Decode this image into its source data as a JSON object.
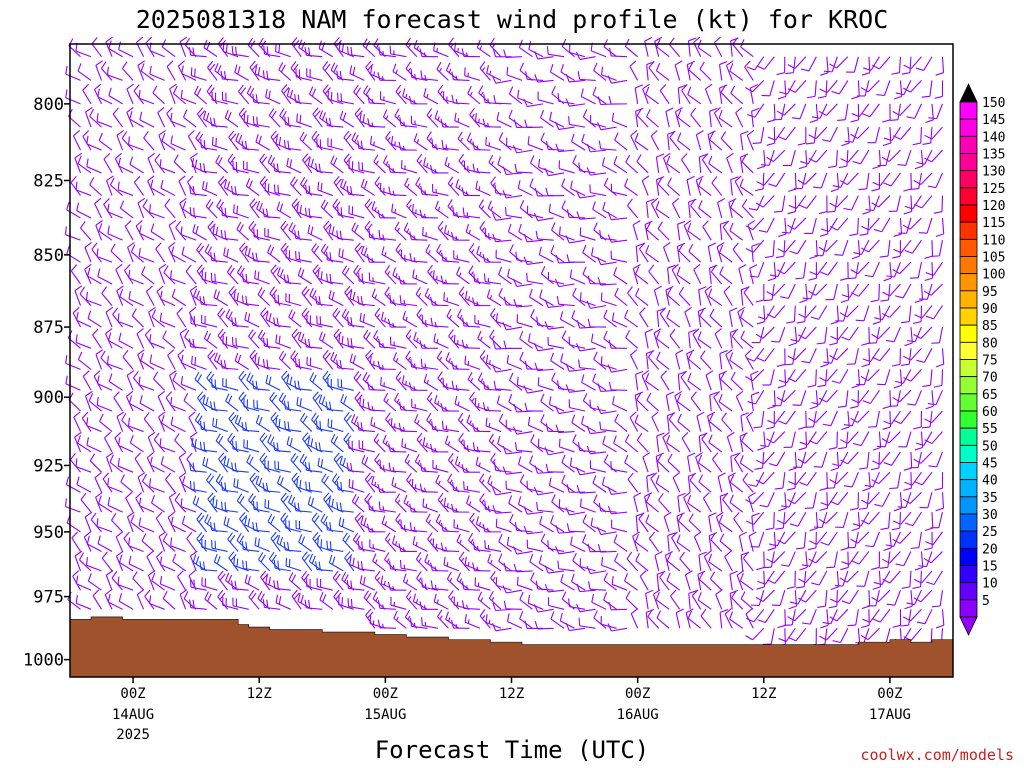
{
  "chart_data": {
    "type": "wind-barb-profile",
    "title": "2025081318 NAM forecast wind profile (kt) for KROC",
    "xlabel": "Forecast Time (UTC)",
    "credit": "coolwx.com/models",
    "y_ticks": [
      "800",
      "825",
      "850",
      "875",
      "900",
      "925",
      "950",
      "975",
      "1000"
    ],
    "y_tick_values": [
      800,
      825,
      850,
      875,
      900,
      925,
      950,
      975,
      1000
    ],
    "ylim_hpa": [
      781,
      1007
    ],
    "x_ticks": [
      {
        "hour": 6,
        "line1": "00Z",
        "line2": "14AUG",
        "line3": "2025"
      },
      {
        "hour": 18,
        "line1": "12Z",
        "line2": "",
        "line3": ""
      },
      {
        "hour": 30,
        "line1": "00Z",
        "line2": "15AUG",
        "line3": ""
      },
      {
        "hour": 42,
        "line1": "12Z",
        "line2": "",
        "line3": ""
      },
      {
        "hour": 54,
        "line1": "00Z",
        "line2": "16AUG",
        "line3": ""
      },
      {
        "hour": 66,
        "line1": "12Z",
        "line2": "",
        "line3": ""
      },
      {
        "hour": 78,
        "line1": "00Z",
        "line2": "17AUG",
        "line3": ""
      }
    ],
    "xlim_hours": [
      0,
      84
    ],
    "colorbar": {
      "labels": [
        "150",
        "145",
        "140",
        "135",
        "130",
        "125",
        "120",
        "115",
        "110",
        "105",
        "100",
        "95",
        "90",
        "85",
        "80",
        "75",
        "70",
        "65",
        "60",
        "55",
        "50",
        "45",
        "40",
        "35",
        "30",
        "25",
        "20",
        "15",
        "10",
        "5"
      ],
      "colors": [
        "#ff00ff",
        "#ff00e6",
        "#ff00b4",
        "#ff0096",
        "#ff0064",
        "#ff0032",
        "#ff0000",
        "#ff3200",
        "#ff5a00",
        "#ff7800",
        "#ff9600",
        "#ffb400",
        "#ffd200",
        "#ffff00",
        "#ffff32",
        "#c8ff32",
        "#96ff32",
        "#64ff32",
        "#32ff32",
        "#00ff96",
        "#00ffc8",
        "#00d2ff",
        "#00b4ff",
        "#0096ff",
        "#0064ff",
        "#0032ff",
        "#0000ff",
        "#3200ff",
        "#6400ff",
        "#8c00ff"
      ],
      "top_arrow_color": "#000000",
      "bottom_arrow_color": "#9600ff"
    },
    "terrain_surface_hpa": [
      {
        "hour": 0,
        "p": 984
      },
      {
        "hour": 2,
        "p": 983
      },
      {
        "hour": 4,
        "p": 983
      },
      {
        "hour": 5,
        "p": 984
      },
      {
        "hour": 15,
        "p": 984
      },
      {
        "hour": 16,
        "p": 986
      },
      {
        "hour": 17,
        "p": 987
      },
      {
        "hour": 19,
        "p": 988
      },
      {
        "hour": 24,
        "p": 989
      },
      {
        "hour": 29,
        "p": 990
      },
      {
        "hour": 32,
        "p": 991
      },
      {
        "hour": 36,
        "p": 992
      },
      {
        "hour": 40,
        "p": 993
      },
      {
        "hour": 43,
        "p": 994
      },
      {
        "hour": 50,
        "p": 994
      },
      {
        "hour": 60,
        "p": 994
      },
      {
        "hour": 66,
        "p": 994
      },
      {
        "hour": 72,
        "p": 994
      },
      {
        "hour": 75,
        "p": 993
      },
      {
        "hour": 78,
        "p": 992
      },
      {
        "hour": 80,
        "p": 993
      },
      {
        "hour": 82,
        "p": 992
      },
      {
        "hour": 84,
        "p": 992
      }
    ],
    "terrain_color": "#a0522d",
    "barb_color_default": "#9600ff",
    "barb_color_strong": "#1e3cff",
    "wind_regimes": [
      {
        "hours": [
          0,
          13
        ],
        "direction_deg": 315,
        "speed_kt": 10
      },
      {
        "hours": [
          13,
          30
        ],
        "direction_deg": 300,
        "speed_kt": 20
      },
      {
        "hours": [
          30,
          42
        ],
        "direction_deg": 295,
        "speed_kt": 15
      },
      {
        "hours": [
          42,
          54
        ],
        "direction_deg": 285,
        "speed_kt": 10
      },
      {
        "hours": [
          54,
          66
        ],
        "direction_deg": 330,
        "speed_kt": 10
      },
      {
        "hours": [
          66,
          84
        ],
        "direction_deg": 200,
        "speed_kt": 10
      }
    ]
  }
}
